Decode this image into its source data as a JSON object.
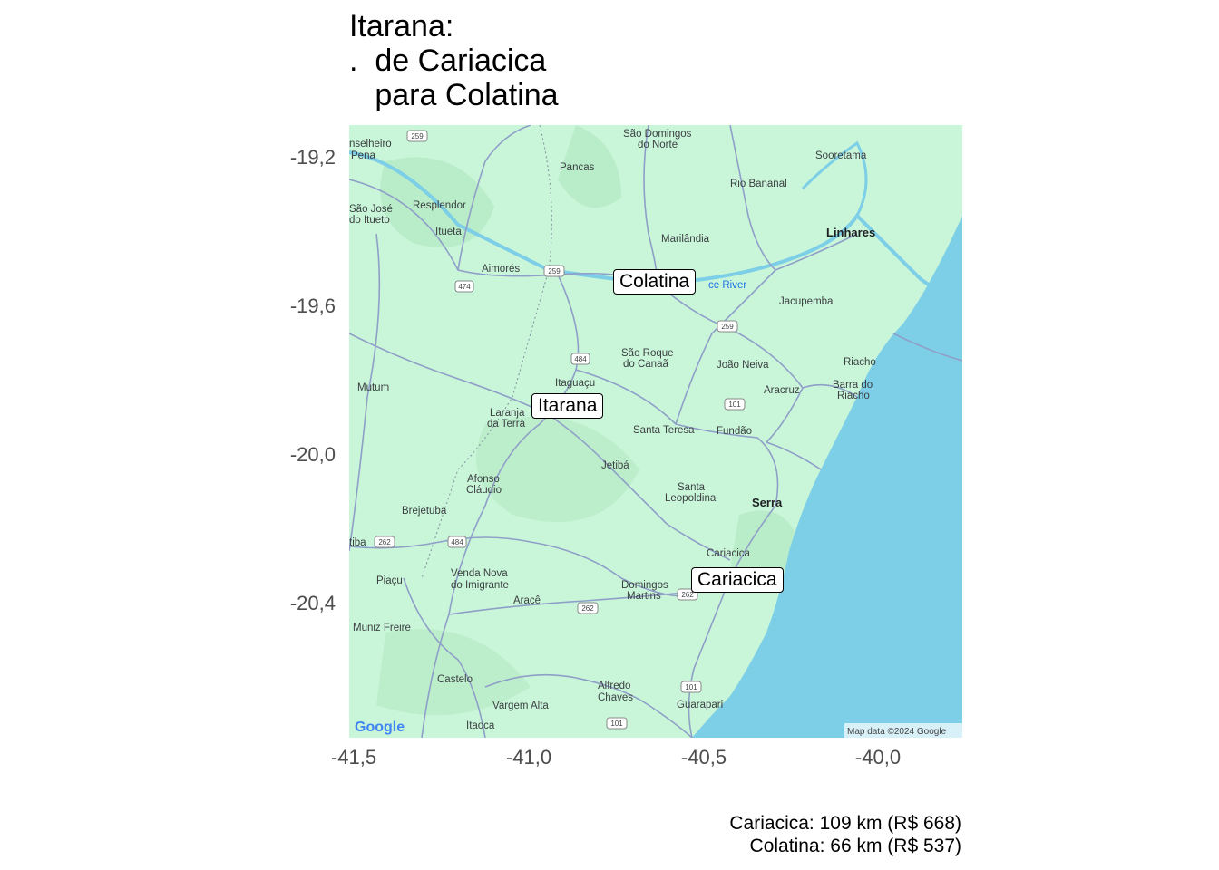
{
  "title": {
    "line1": "Itarana:",
    "line2": ".  de Cariacica",
    "line3": "   para Colatina"
  },
  "axes": {
    "y_ticks": [
      "-19,2",
      "-19,6",
      "-20,0",
      "-20,4"
    ],
    "x_ticks": [
      "-41,5",
      "-41,0",
      "-40,5",
      "-40,0"
    ]
  },
  "cities": [
    {
      "name": "Colatina",
      "lon": -40.63,
      "lat": -19.54
    },
    {
      "name": "Itarana",
      "lon": -40.87,
      "lat": -19.87
    },
    {
      "name": "Cariacica",
      "lon": -40.42,
      "lat": -20.26
    }
  ],
  "map_labels": {
    "sao_domingos": "São Domingos",
    "do_norte": "do Norte",
    "sooretama": "Sooretama",
    "conselheiro": "nselheiro",
    "pena": "Pena",
    "pancas": "Pancas",
    "rio_bananal": "Rio Bananal",
    "sao_jose": "São José",
    "do_itueto": "do Itueto",
    "resplendor": "Resplendor",
    "itueta": "Itueta",
    "marilandia": "Marilândia",
    "linhares": "Linhares",
    "aimores": "Aimorés",
    "doce_river": "ce River",
    "jacupemba": "Jacupemba",
    "sao_roque": "São Roque",
    "do_canaa": "do Canaã",
    "joao_neiva": "João Neiva",
    "riacho": "Riacho",
    "itaguacu": "Itaguaçu",
    "aracruz": "Aracruz",
    "barra_do": "Barra do",
    "riacho2": "Riacho",
    "mutum": "Mutum",
    "laranja": "Laranja",
    "da_terra": "da Terra",
    "santa_teresa": "Santa Teresa",
    "fundao": "Fundão",
    "jetiba": "Jetibá",
    "afonso": "Afonso",
    "claudio": "Cláudio",
    "santa": "Santa",
    "leopoldina": "Leopoldina",
    "serra": "Serra",
    "brejetuba": "Brejetuba",
    "iuna": "tiba",
    "cariacica_lbl": "Cariacica",
    "venda_nova": "Venda Nova",
    "do_imigrante": "do Imigrante",
    "piacu": "Piaçu",
    "domingos": "Domingos",
    "martins": "Martins",
    "arace": "Aracê",
    "muniz_freire": "Muniz Freire",
    "castelo": "Castelo",
    "alfredo": "Alfredo",
    "chaves": "Chaves",
    "vargem_alta": "Vargem Alta",
    "guarapari": "Guarapari",
    "itaoca": "Itaoca",
    "google": "Google",
    "map_data": "Map data ©2024 Google"
  },
  "routes": [
    "259",
    "259",
    "474",
    "259",
    "484",
    "101",
    "484",
    "262",
    "262",
    "262",
    "101",
    "101"
  ],
  "caption": {
    "line1": "Cariacica: 109 km (R$ 668)",
    "line2": "Colatina: 66 km (R$ 537)"
  },
  "colors": {
    "land": "#c9f5d9",
    "ocean": "#7ccfe6",
    "roads": "#8f9fc8"
  }
}
